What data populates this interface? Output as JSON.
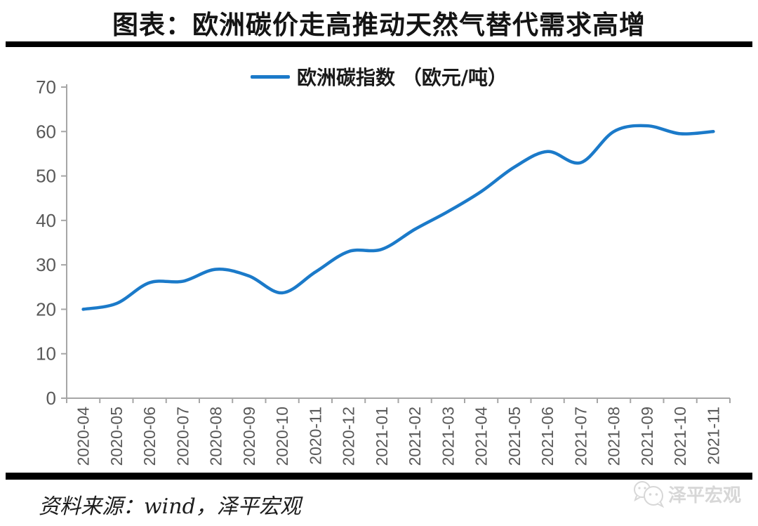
{
  "header": {
    "title": "图表：欧洲碳价走高推动天然气替代需求高增"
  },
  "chart_data": {
    "type": "line",
    "title": "",
    "xlabel": "",
    "ylabel": "",
    "grid": false,
    "legend_position": "top-center",
    "ylim": [
      0,
      70
    ],
    "ytick_step": 10,
    "categories": [
      "2020-04",
      "2020-05",
      "2020-06",
      "2020-07",
      "2020-08",
      "2020-09",
      "2020-10",
      "2020-11",
      "2020-12",
      "2021-01",
      "2021-02",
      "2021-03",
      "2021-04",
      "2021-05",
      "2021-06",
      "2021-07",
      "2021-08",
      "2021-09",
      "2021-10",
      "2021-11"
    ],
    "series": [
      {
        "name": "欧洲碳指数 （欧元/吨）",
        "color": "#1b7ac9",
        "values": [
          20,
          21.3,
          26,
          26.3,
          29,
          27.5,
          23.7,
          28.4,
          33,
          33.5,
          38,
          42,
          46.5,
          52,
          55.5,
          53,
          60,
          61.3,
          59.5,
          60
        ]
      }
    ]
  },
  "footer": {
    "source": "资料来源：wind，泽平宏观",
    "watermark_label": "泽平宏观"
  },
  "colors": {
    "line": "#1b7ac9",
    "axis": "#a6a6a6",
    "tick_label": "#595959",
    "divider": "#000000",
    "watermark": "#d7d7d7"
  }
}
